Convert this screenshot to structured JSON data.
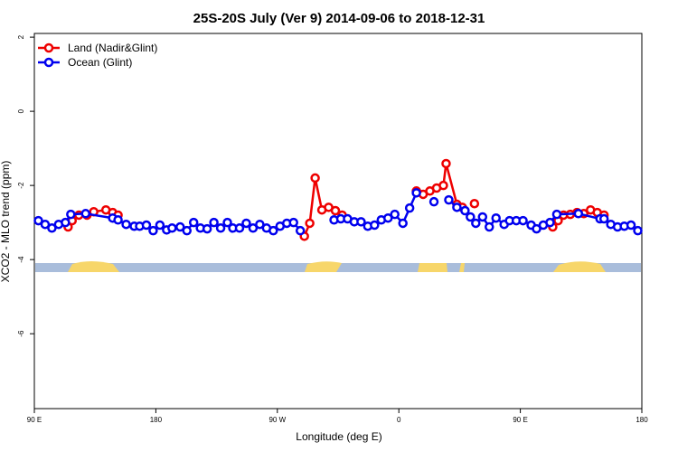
{
  "chart_data": {
    "type": "line",
    "title": "25S-20S July (Ver 9)   2014-09-06 to 2018-12-31",
    "x_label": "Longitude (deg E)",
    "y_label": "XCO2 - MLO trend (ppm)",
    "xlim": [
      90,
      540
    ],
    "ylim": [
      -8.02,
      2.1
    ],
    "xticks": [
      {
        "value": 90,
        "label": "90 E"
      },
      180,
      {
        "value": 270,
        "label": "90 W"
      },
      {
        "value": 360,
        "label": "0"
      },
      {
        "value": 450,
        "label": "90 E"
      },
      {
        "value": 540,
        "label": "180"
      }
    ],
    "yticks": [
      -6,
      -4,
      -2,
      0,
      2
    ],
    "legend": "top-left",
    "series": [
      {
        "name": "Land (Nadir&Glint)",
        "color": "#ee0000",
        "x": [
          115,
          118,
          123,
          129,
          134,
          143,
          148,
          152,
          null,
          290,
          294,
          298,
          303,
          308,
          313,
          318,
          null,
          373,
          378,
          383,
          388,
          393,
          395,
          403,
          407,
          null,
          416,
          null,
          474,
          478,
          482,
          487,
          492,
          497,
          502,
          507,
          512
        ],
        "values": [
          -3.12,
          -2.95,
          -2.8,
          -2.8,
          -2.71,
          -2.66,
          -2.73,
          -2.8,
          null,
          -3.37,
          -3.02,
          -1.8,
          -2.66,
          -2.59,
          -2.68,
          -2.8,
          null,
          -2.15,
          -2.24,
          -2.15,
          -2.07,
          -2.0,
          -1.41,
          -2.51,
          -2.59,
          null,
          -2.49,
          null,
          -3.12,
          -2.95,
          -2.8,
          -2.78,
          -2.73,
          -2.76,
          -2.66,
          -2.73,
          -2.8
        ]
      },
      {
        "name": "Ocean (Glint)",
        "color": "#0000ee",
        "x": [
          93,
          98,
          103,
          108,
          113,
          117,
          128,
          148,
          152,
          158,
          164,
          168,
          173,
          178,
          183,
          188,
          192,
          198,
          203,
          208,
          213,
          218,
          223,
          228,
          233,
          237,
          242,
          247,
          252,
          257,
          262,
          267,
          272,
          277,
          282,
          287,
          null,
          312,
          317,
          322,
          327,
          332,
          337,
          342,
          347,
          352,
          357,
          363,
          368,
          373,
          null,
          386,
          null,
          397,
          403,
          409,
          413,
          417,
          422,
          427,
          432,
          438,
          442,
          447,
          452,
          458,
          462,
          467,
          472,
          477,
          493,
          509,
          512,
          517,
          522,
          527,
          532,
          537
        ],
        "values": [
          -2.95,
          -3.05,
          -3.15,
          -3.05,
          -3.0,
          -2.78,
          -2.76,
          -2.88,
          -2.93,
          -3.05,
          -3.1,
          -3.1,
          -3.07,
          -3.22,
          -3.07,
          -3.2,
          -3.15,
          -3.12,
          -3.22,
          -3.0,
          -3.15,
          -3.17,
          -3.0,
          -3.15,
          -3.0,
          -3.15,
          -3.15,
          -3.02,
          -3.15,
          -3.05,
          -3.15,
          -3.22,
          -3.1,
          -3.02,
          -3.0,
          -3.22,
          null,
          -2.93,
          -2.9,
          -2.9,
          -2.98,
          -2.98,
          -3.1,
          -3.07,
          -2.93,
          -2.88,
          -2.78,
          -3.02,
          -2.61,
          -2.2,
          null,
          -2.44,
          null,
          -2.39,
          -2.59,
          -2.68,
          -2.85,
          -3.02,
          -2.85,
          -3.12,
          -2.88,
          -3.05,
          -2.95,
          -2.95,
          -2.95,
          -3.07,
          -3.17,
          -3.07,
          -3.0,
          -2.78,
          -2.76,
          -2.9,
          -2.9,
          -3.05,
          -3.12,
          -3.1,
          -3.07,
          -3.22
        ]
      }
    ]
  }
}
